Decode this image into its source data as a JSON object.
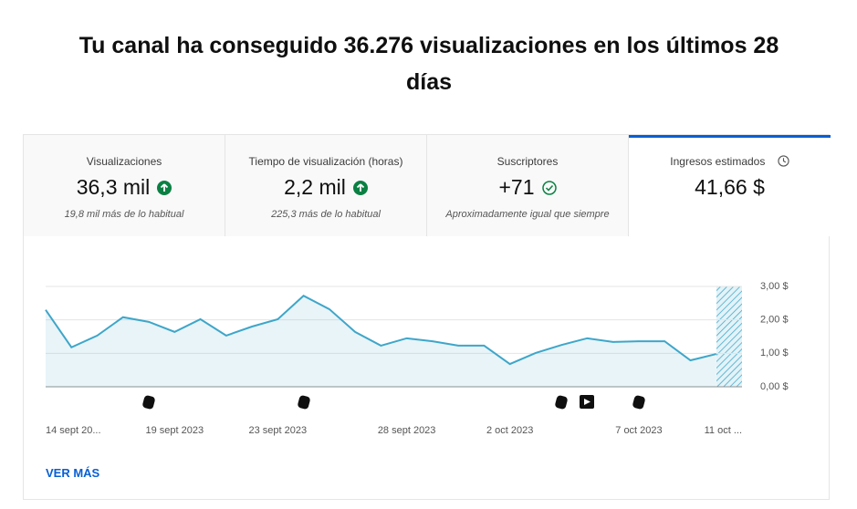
{
  "header": {
    "title": "Tu canal ha conseguido 36.276 visualizaciones en los últimos 28 días"
  },
  "tabs": [
    {
      "label": "Visualizaciones",
      "value": "36,3 mil",
      "note": "19,8 mil más de lo habitual"
    },
    {
      "label": "Tiempo de visualización (horas)",
      "value": "2,2 mil",
      "note": "225,3 más de lo habitual"
    },
    {
      "label": "Suscriptores",
      "value": "+71",
      "note": "Aproximadamente igual que siempre"
    },
    {
      "label": "Ingresos estimados",
      "value": "41,66 $"
    }
  ],
  "chart_data": {
    "type": "area",
    "categories": [
      "14 sept 20...",
      null,
      null,
      null,
      null,
      "19 sept 2023",
      null,
      null,
      null,
      "23 sept 2023",
      null,
      null,
      null,
      null,
      "28 sept 2023",
      null,
      null,
      null,
      "2 oct 2023",
      null,
      null,
      null,
      null,
      "7 oct 2023",
      null,
      null,
      null,
      "11 oct ..."
    ],
    "values": [
      2.3,
      1.18,
      1.53,
      2.08,
      1.94,
      1.64,
      2.02,
      1.53,
      1.8,
      2.02,
      2.72,
      2.32,
      1.64,
      1.23,
      1.45,
      1.36,
      1.23,
      1.23,
      0.68,
      1.01,
      1.25,
      1.45,
      1.34,
      1.36,
      1.36,
      0.79,
      0.98,
      null
    ],
    "color": "#3ea6c9",
    "ylim": [
      0,
      3
    ],
    "yticks": [
      {
        "value": 0,
        "label": "0,00 $"
      },
      {
        "value": 1,
        "label": "1,00 $"
      },
      {
        "value": 2,
        "label": "2,00 $"
      },
      {
        "value": 3,
        "label": "3,00 $"
      }
    ],
    "grid": true
  },
  "link": "VER MÁS"
}
